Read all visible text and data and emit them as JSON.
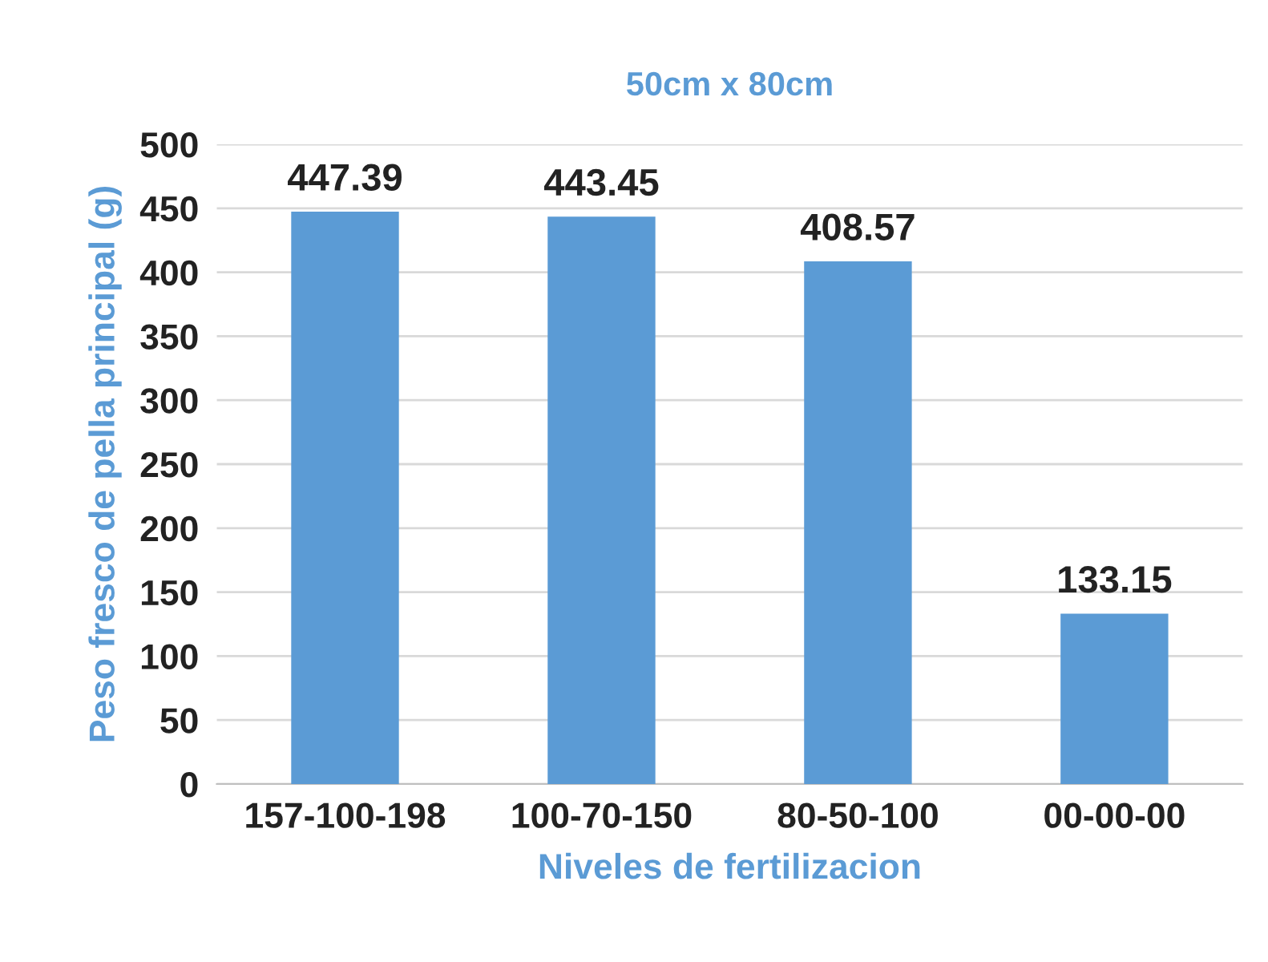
{
  "chart_data": {
    "type": "bar",
    "title": "50cm x 80cm",
    "xlabel": "Niveles de fertilizacion",
    "ylabel": "Peso fresco de pella principal (g)",
    "categories": [
      "157-100-198",
      "100-70-150",
      "80-50-100",
      "00-00-00"
    ],
    "values": [
      447.39,
      443.45,
      408.57,
      133.15
    ],
    "color": "#5b9bd5",
    "ylim": [
      0,
      500
    ],
    "yticks": [
      0,
      50,
      100,
      150,
      200,
      250,
      300,
      350,
      400,
      450,
      500
    ],
    "grid": "y",
    "data_labels": true
  }
}
